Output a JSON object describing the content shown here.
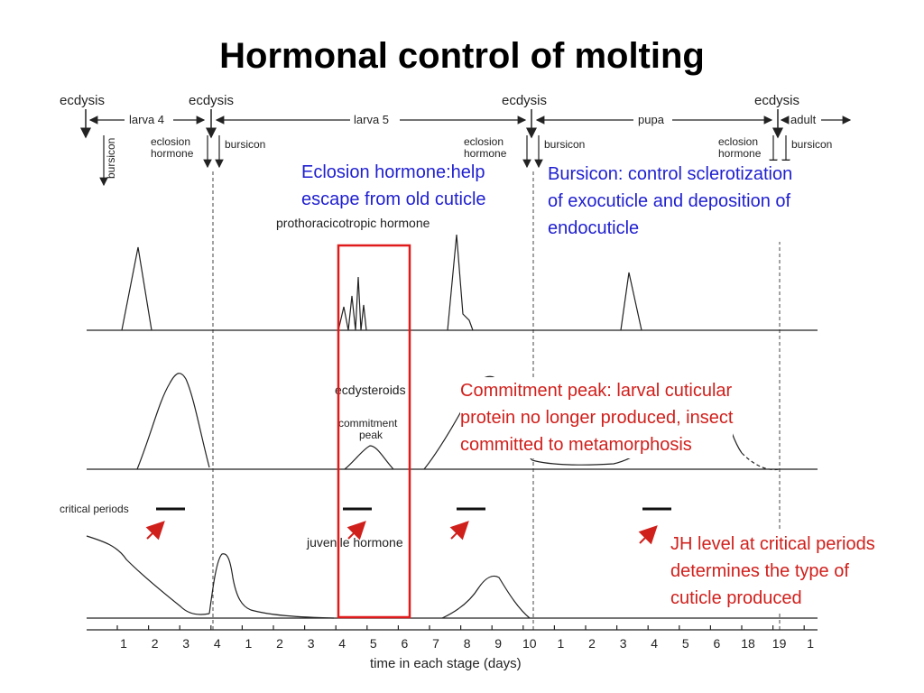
{
  "title": "Hormonal control of molting",
  "colors": {
    "callout_blue": "#1f1fd0",
    "callout_red": "#d0201c",
    "line": "#222222"
  },
  "stages": {
    "ecdysis_label": "ecdysis",
    "larva4": "larva 4",
    "larva5": "larva 5",
    "pupa": "pupa",
    "adult": "adult"
  },
  "hormone_labels": {
    "eclosion": [
      "eclosion",
      "hormone"
    ],
    "bursicon": "bursicon",
    "prothoracicotropic": "prothoracicotropic hormone",
    "ecdysteroids": "ecdysteroids",
    "commitment_peak": [
      "commitment",
      "peak"
    ],
    "juvenile_hormone": "juvenile hormone",
    "critical_periods": "critical periods"
  },
  "x_axis": {
    "label": "time in each stage (days)",
    "ticks": [
      "1",
      "2",
      "3",
      "4",
      "1",
      "2",
      "3",
      "4",
      "5",
      "6",
      "7",
      "8",
      "9",
      "10",
      "1",
      "2",
      "3",
      "4",
      "5",
      "6",
      "18",
      "19",
      "1"
    ]
  },
  "callouts": {
    "eclosion": [
      "Eclosion hormone:help",
      "escape from old cuticle"
    ],
    "bursicon": [
      "Bursicon: control sclerotization",
      "of exocuticle and deposition of",
      "endocuticle"
    ],
    "commitment": [
      "Commitment peak: larval cuticular",
      "protein no longer produced, insect",
      "committed to metamorphosis"
    ],
    "jh": [
      "JH level at critical periods",
      "determines the type of",
      "cuticle produced"
    ]
  }
}
